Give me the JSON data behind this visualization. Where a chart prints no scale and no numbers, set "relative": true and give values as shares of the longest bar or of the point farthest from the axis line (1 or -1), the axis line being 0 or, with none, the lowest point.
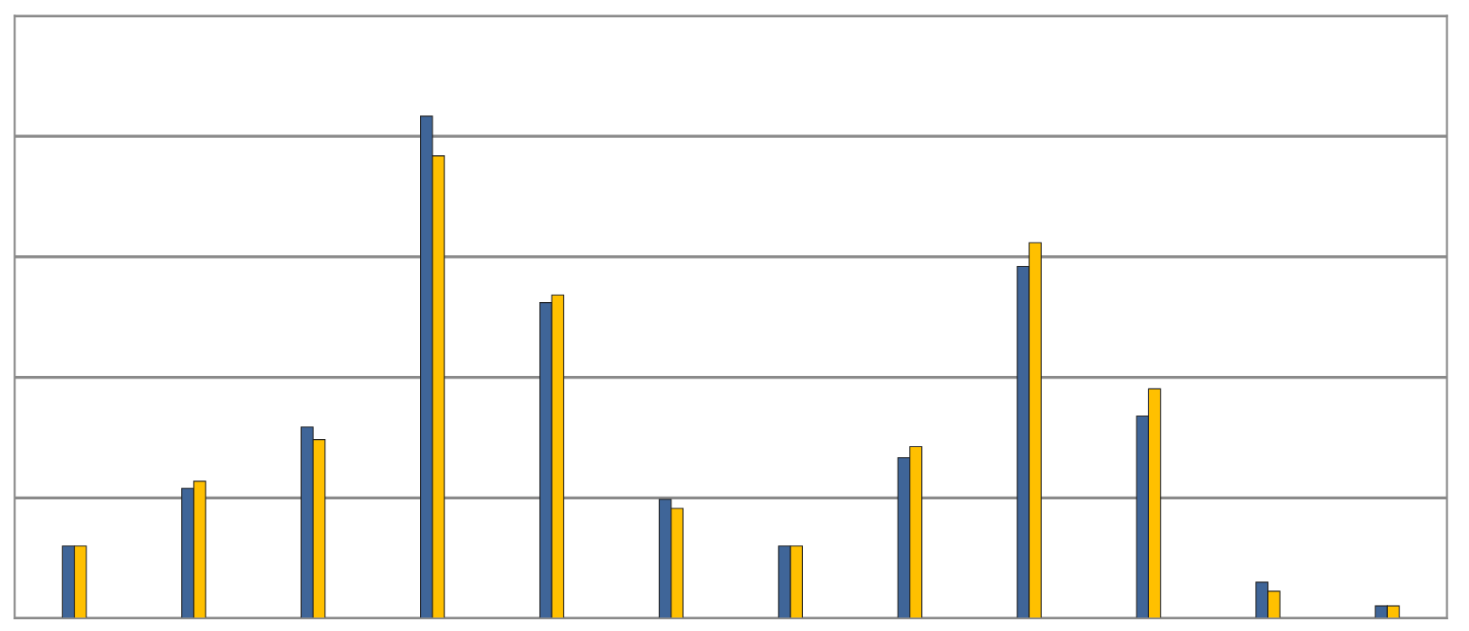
{
  "chart_data": {
    "type": "bar",
    "relative": true,
    "grid": "y",
    "categories": [
      null,
      null,
      null,
      null,
      null,
      null,
      null,
      null,
      null,
      null,
      null,
      null
    ],
    "series": [
      {
        "color": "#3f6598",
        "values": [
          0.144,
          0.259,
          0.381,
          1,
          0.629,
          0.237,
          0.144,
          0.32,
          0.701,
          0.403,
          0.072,
          0.025
        ]
      },
      {
        "color": "#ffc000",
        "values": [
          0.144,
          0.273,
          0.356,
          0.921,
          0.644,
          0.219,
          0.144,
          0.342,
          0.748,
          0.457,
          0.054,
          0.025
        ]
      }
    ]
  }
}
